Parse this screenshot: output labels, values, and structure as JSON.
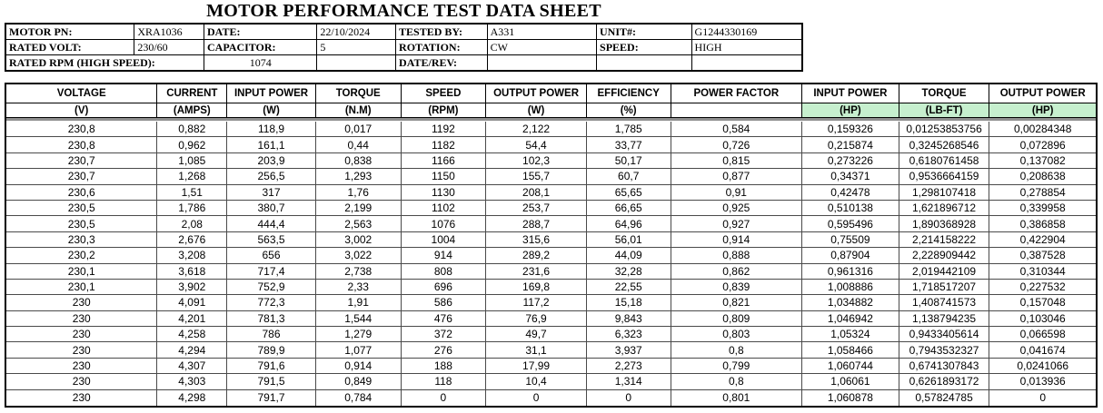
{
  "title": "MOTOR PERFORMANCE TEST DATA SHEET",
  "colors": {
    "header_fill_green": "#C6EFCE",
    "outer_border": "#000000",
    "grid_line": "#4a4a4a",
    "divider_gray": "#8f8f8f"
  },
  "info_table": {
    "rows": [
      [
        {
          "text": "MOTOR PN:",
          "type": "label"
        },
        {
          "text": "XRA1036",
          "type": "value"
        },
        {
          "text": "DATE:",
          "type": "label"
        },
        {
          "text": "22/10/2024",
          "type": "value"
        },
        {
          "text": "TESTED BY:",
          "type": "label"
        },
        {
          "text": "A331",
          "type": "value"
        },
        {
          "text": "UNIT#:",
          "type": "label"
        },
        {
          "text": "G1244330169",
          "type": "value"
        }
      ],
      [
        {
          "text": "RATED VOLT:",
          "type": "label"
        },
        {
          "text": "230/60",
          "type": "value"
        },
        {
          "text": "CAPACITOR:",
          "type": "label"
        },
        {
          "text": "5",
          "type": "value"
        },
        {
          "text": "ROTATION:",
          "type": "label"
        },
        {
          "text": "CW",
          "type": "value"
        },
        {
          "text": "SPEED:",
          "type": "label"
        },
        {
          "text": "HIGH",
          "type": "value"
        }
      ],
      [
        {
          "text": "RATED RPM (HIGH SPEED):",
          "type": "label",
          "span": 2
        },
        {
          "text": "1074",
          "type": "value",
          "align": "center"
        },
        {
          "text": "",
          "type": "value"
        },
        {
          "text": "DATE/REV:",
          "type": "label"
        },
        {
          "text": "",
          "type": "value"
        },
        {
          "text": "",
          "type": "label"
        },
        {
          "text": "",
          "type": "value"
        }
      ]
    ]
  },
  "main_table": {
    "columns": [
      {
        "name": "VOLTAGE",
        "unit": "(V)",
        "green": false
      },
      {
        "name": "CURRENT",
        "unit": "(AMPS)",
        "green": false
      },
      {
        "name": "INPUT POWER",
        "unit": "(W)",
        "green": false
      },
      {
        "name": "TORQUE",
        "unit": "(N.M)",
        "green": false
      },
      {
        "name": "SPEED",
        "unit": "(RPM)",
        "green": false
      },
      {
        "name": "OUTPUT POWER",
        "unit": "(W)",
        "green": false
      },
      {
        "name": "EFFICIENCY",
        "unit": "(%)",
        "green": false
      },
      {
        "name": "POWER FACTOR",
        "unit": "",
        "green": false
      },
      {
        "name": "INPUT POWER",
        "unit": "(HP)",
        "green": true
      },
      {
        "name": "TORQUE",
        "unit": "(LB-FT)",
        "green": true
      },
      {
        "name": "OUTPUT POWER",
        "unit": "(HP)",
        "green": true
      }
    ],
    "rows": [
      [
        "230,8",
        "0,882",
        "118,9",
        "0,017",
        "1192",
        "2,122",
        "1,785",
        "0,584",
        "0,159326",
        "0,01253853756",
        "0,00284348"
      ],
      [
        "230,8",
        "0,962",
        "161,1",
        "0,44",
        "1182",
        "54,4",
        "33,77",
        "0,726",
        "0,215874",
        "0,3245268546",
        "0,072896"
      ],
      [
        "230,7",
        "1,085",
        "203,9",
        "0,838",
        "1166",
        "102,3",
        "50,17",
        "0,815",
        "0,273226",
        "0,6180761458",
        "0,137082"
      ],
      [
        "230,7",
        "1,268",
        "256,5",
        "1,293",
        "1150",
        "155,7",
        "60,7",
        "0,877",
        "0,34371",
        "0,9536664159",
        "0,208638"
      ],
      [
        "230,6",
        "1,51",
        "317",
        "1,76",
        "1130",
        "208,1",
        "65,65",
        "0,91",
        "0,42478",
        "1,298107418",
        "0,278854"
      ],
      [
        "230,5",
        "1,786",
        "380,7",
        "2,199",
        "1102",
        "253,7",
        "66,65",
        "0,925",
        "0,510138",
        "1,621896712",
        "0,339958"
      ],
      [
        "230,5",
        "2,08",
        "444,4",
        "2,563",
        "1076",
        "288,7",
        "64,96",
        "0,927",
        "0,595496",
        "1,890368928",
        "0,386858"
      ],
      [
        "230,3",
        "2,676",
        "563,5",
        "3,002",
        "1004",
        "315,6",
        "56,01",
        "0,914",
        "0,75509",
        "2,214158222",
        "0,422904"
      ],
      [
        "230,2",
        "3,208",
        "656",
        "3,022",
        "914",
        "289,2",
        "44,09",
        "0,888",
        "0,87904",
        "2,228909442",
        "0,387528"
      ],
      [
        "230,1",
        "3,618",
        "717,4",
        "2,738",
        "808",
        "231,6",
        "32,28",
        "0,862",
        "0,961316",
        "2,019442109",
        "0,310344"
      ],
      [
        "230,1",
        "3,902",
        "752,9",
        "2,33",
        "696",
        "169,8",
        "22,55",
        "0,839",
        "1,008886",
        "1,718517207",
        "0,227532"
      ],
      [
        "230",
        "4,091",
        "772,3",
        "1,91",
        "586",
        "117,2",
        "15,18",
        "0,821",
        "1,034882",
        "1,408741573",
        "0,157048"
      ],
      [
        "230",
        "4,201",
        "781,3",
        "1,544",
        "476",
        "76,9",
        "9,843",
        "0,809",
        "1,046942",
        "1,138794235",
        "0,103046"
      ],
      [
        "230",
        "4,258",
        "786",
        "1,279",
        "372",
        "49,7",
        "6,323",
        "0,803",
        "1,05324",
        "0,9433405614",
        "0,066598"
      ],
      [
        "230",
        "4,294",
        "789,9",
        "1,077",
        "276",
        "31,1",
        "3,937",
        "0,8",
        "1,058466",
        "0,7943532327",
        "0,041674"
      ],
      [
        "230",
        "4,307",
        "791,6",
        "0,914",
        "188",
        "17,99",
        "2,273",
        "0,799",
        "1,060744",
        "0,6741307843",
        "0,0241066"
      ],
      [
        "230",
        "4,303",
        "791,5",
        "0,849",
        "118",
        "10,4",
        "1,314",
        "0,8",
        "1,06061",
        "0,6261893172",
        "0,013936"
      ],
      [
        "230",
        "4,298",
        "791,7",
        "0,784",
        "0",
        "0",
        "0",
        "0,801",
        "1,060878",
        "0,57824785",
        "0"
      ]
    ]
  }
}
